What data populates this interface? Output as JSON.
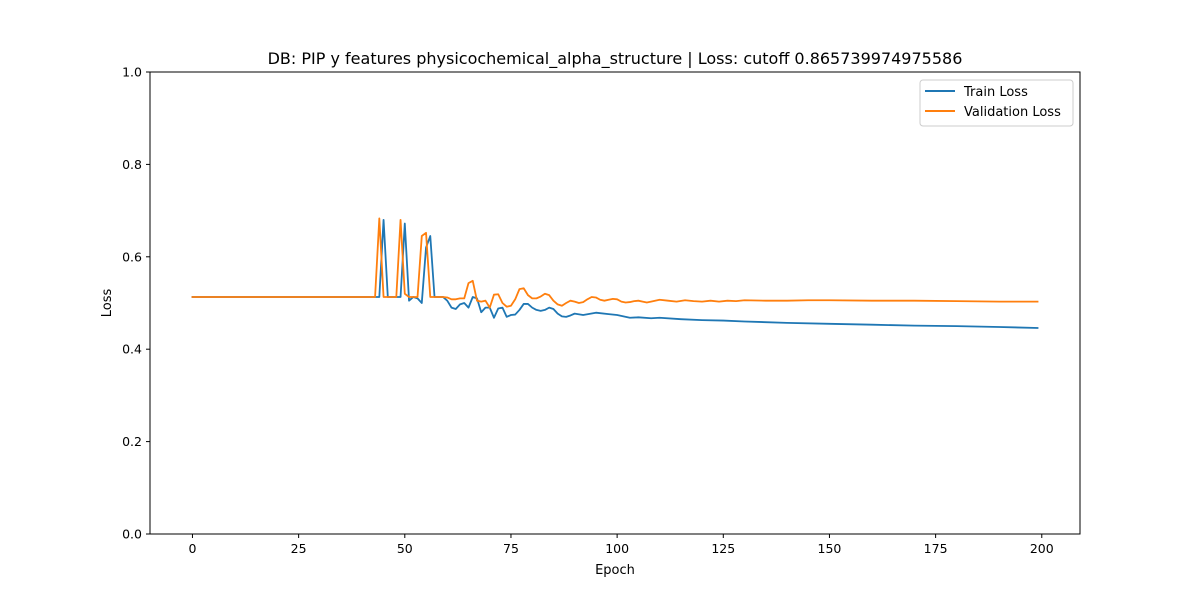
{
  "chart_data": {
    "type": "line",
    "title": "DB: PIP y features physicochemical_alpha_structure | Loss: cutoff 0.865739974975586",
    "xlabel": "Epoch",
    "ylabel": "Loss",
    "xlim": [
      -10,
      209
    ],
    "ylim": [
      0,
      1.0
    ],
    "xticks": [
      0,
      25,
      50,
      75,
      100,
      125,
      150,
      175,
      200
    ],
    "yticks": [
      0.0,
      0.2,
      0.4,
      0.6,
      0.8,
      1.0
    ],
    "xtick_labels": [
      "0",
      "25",
      "50",
      "75",
      "100",
      "125",
      "150",
      "175",
      "200"
    ],
    "ytick_labels": [
      "0.0",
      "0.2",
      "0.4",
      "0.6",
      "0.8",
      "1.0"
    ],
    "grid": false,
    "legend_position": "top-right",
    "series": [
      {
        "name": "Train Loss",
        "color": "#1f77b4",
        "points": [
          [
            0,
            0.513
          ],
          [
            10,
            0.513
          ],
          [
            20,
            0.513
          ],
          [
            30,
            0.513
          ],
          [
            40,
            0.513
          ],
          [
            43,
            0.513
          ],
          [
            44,
            0.513
          ],
          [
            45,
            0.68
          ],
          [
            46,
            0.513
          ],
          [
            47,
            0.513
          ],
          [
            48,
            0.513
          ],
          [
            49,
            0.513
          ],
          [
            50,
            0.672
          ],
          [
            51,
            0.505
          ],
          [
            52,
            0.513
          ],
          [
            53,
            0.51
          ],
          [
            54,
            0.5
          ],
          [
            55,
            0.62
          ],
          [
            56,
            0.645
          ],
          [
            57,
            0.513
          ],
          [
            58,
            0.513
          ],
          [
            59,
            0.513
          ],
          [
            60,
            0.505
          ],
          [
            61,
            0.49
          ],
          [
            62,
            0.487
          ],
          [
            63,
            0.497
          ],
          [
            64,
            0.5
          ],
          [
            65,
            0.49
          ],
          [
            66,
            0.513
          ],
          [
            67,
            0.51
          ],
          [
            68,
            0.48
          ],
          [
            69,
            0.49
          ],
          [
            70,
            0.49
          ],
          [
            71,
            0.468
          ],
          [
            72,
            0.488
          ],
          [
            73,
            0.49
          ],
          [
            74,
            0.47
          ],
          [
            75,
            0.474
          ],
          [
            76,
            0.475
          ],
          [
            77,
            0.485
          ],
          [
            78,
            0.498
          ],
          [
            79,
            0.498
          ],
          [
            80,
            0.49
          ],
          [
            81,
            0.485
          ],
          [
            82,
            0.483
          ],
          [
            83,
            0.485
          ],
          [
            84,
            0.49
          ],
          [
            85,
            0.487
          ],
          [
            86,
            0.477
          ],
          [
            87,
            0.471
          ],
          [
            88,
            0.47
          ],
          [
            89,
            0.473
          ],
          [
            90,
            0.477
          ],
          [
            92,
            0.474
          ],
          [
            95,
            0.479
          ],
          [
            98,
            0.476
          ],
          [
            100,
            0.474
          ],
          [
            103,
            0.468
          ],
          [
            105,
            0.469
          ],
          [
            108,
            0.467
          ],
          [
            110,
            0.468
          ],
          [
            115,
            0.465
          ],
          [
            120,
            0.463
          ],
          [
            125,
            0.462
          ],
          [
            130,
            0.46
          ],
          [
            140,
            0.457
          ],
          [
            150,
            0.455
          ],
          [
            160,
            0.453
          ],
          [
            170,
            0.451
          ],
          [
            180,
            0.45
          ],
          [
            190,
            0.448
          ],
          [
            199,
            0.446
          ]
        ]
      },
      {
        "name": "Validation Loss",
        "color": "#ff7f0e",
        "points": [
          [
            0,
            0.513
          ],
          [
            10,
            0.513
          ],
          [
            20,
            0.513
          ],
          [
            30,
            0.513
          ],
          [
            40,
            0.513
          ],
          [
            43,
            0.513
          ],
          [
            44,
            0.683
          ],
          [
            45,
            0.513
          ],
          [
            46,
            0.513
          ],
          [
            47,
            0.513
          ],
          [
            48,
            0.513
          ],
          [
            49,
            0.68
          ],
          [
            50,
            0.52
          ],
          [
            51,
            0.513
          ],
          [
            52,
            0.513
          ],
          [
            53,
            0.513
          ],
          [
            54,
            0.645
          ],
          [
            55,
            0.652
          ],
          [
            56,
            0.513
          ],
          [
            57,
            0.513
          ],
          [
            58,
            0.513
          ],
          [
            59,
            0.513
          ],
          [
            60,
            0.512
          ],
          [
            61,
            0.508
          ],
          [
            62,
            0.508
          ],
          [
            63,
            0.51
          ],
          [
            64,
            0.51
          ],
          [
            65,
            0.543
          ],
          [
            66,
            0.548
          ],
          [
            67,
            0.505
          ],
          [
            68,
            0.503
          ],
          [
            69,
            0.505
          ],
          [
            70,
            0.49
          ],
          [
            71,
            0.518
          ],
          [
            72,
            0.519
          ],
          [
            73,
            0.5
          ],
          [
            74,
            0.492
          ],
          [
            75,
            0.494
          ],
          [
            76,
            0.508
          ],
          [
            77,
            0.53
          ],
          [
            78,
            0.532
          ],
          [
            79,
            0.517
          ],
          [
            80,
            0.51
          ],
          [
            81,
            0.51
          ],
          [
            82,
            0.514
          ],
          [
            83,
            0.52
          ],
          [
            84,
            0.517
          ],
          [
            85,
            0.505
          ],
          [
            86,
            0.497
          ],
          [
            87,
            0.494
          ],
          [
            88,
            0.5
          ],
          [
            89,
            0.505
          ],
          [
            90,
            0.503
          ],
          [
            91,
            0.5
          ],
          [
            92,
            0.502
          ],
          [
            93,
            0.508
          ],
          [
            94,
            0.513
          ],
          [
            95,
            0.512
          ],
          [
            96,
            0.507
          ],
          [
            97,
            0.505
          ],
          [
            98,
            0.507
          ],
          [
            99,
            0.509
          ],
          [
            100,
            0.508
          ],
          [
            101,
            0.503
          ],
          [
            102,
            0.501
          ],
          [
            103,
            0.502
          ],
          [
            104,
            0.504
          ],
          [
            105,
            0.505
          ],
          [
            106,
            0.503
          ],
          [
            107,
            0.501
          ],
          [
            108,
            0.503
          ],
          [
            110,
            0.507
          ],
          [
            112,
            0.505
          ],
          [
            114,
            0.503
          ],
          [
            116,
            0.506
          ],
          [
            118,
            0.504
          ],
          [
            120,
            0.503
          ],
          [
            122,
            0.505
          ],
          [
            124,
            0.503
          ],
          [
            126,
            0.505
          ],
          [
            128,
            0.504
          ],
          [
            130,
            0.506
          ],
          [
            135,
            0.505
          ],
          [
            140,
            0.505
          ],
          [
            145,
            0.506
          ],
          [
            150,
            0.506
          ],
          [
            160,
            0.505
          ],
          [
            170,
            0.505
          ],
          [
            180,
            0.504
          ],
          [
            190,
            0.503
          ],
          [
            199,
            0.503
          ]
        ]
      }
    ]
  }
}
